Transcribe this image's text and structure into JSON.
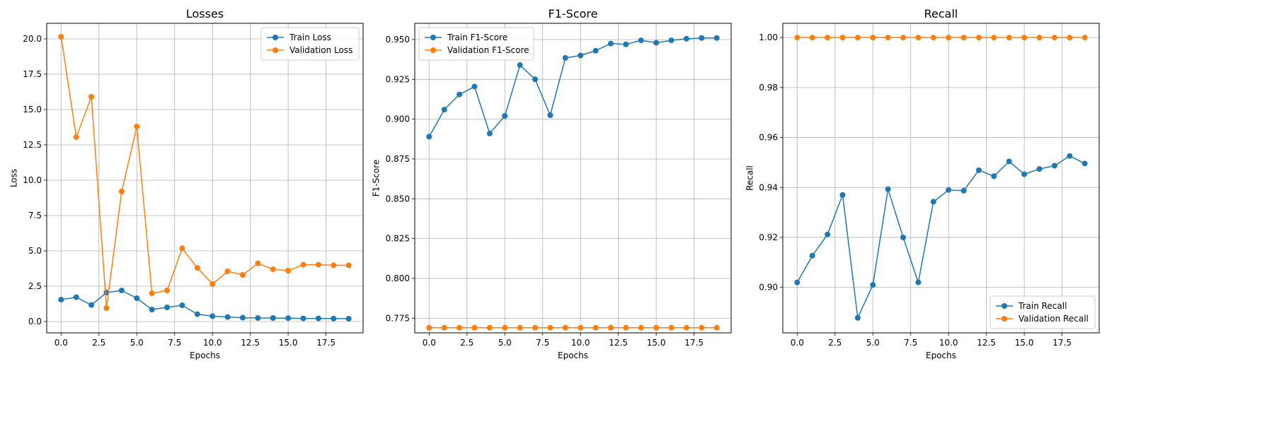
{
  "colors": {
    "train": "#1f77b4",
    "validation": "#ff7f0e"
  },
  "chart_data": [
    {
      "type": "line",
      "title": "Losses",
      "xlabel": "Epochs",
      "ylabel": "Loss",
      "x": [
        0,
        1,
        2,
        3,
        4,
        5,
        6,
        7,
        8,
        9,
        10,
        11,
        12,
        13,
        14,
        15,
        16,
        17,
        18,
        19
      ],
      "xlim": [
        -0.95,
        19.95
      ],
      "ylim": [
        -0.8,
        21.1
      ],
      "xticks": [
        "0.0",
        "2.5",
        "5.0",
        "7.5",
        "10.0",
        "12.5",
        "15.0",
        "17.5"
      ],
      "xtick_values": [
        0,
        2.5,
        5,
        7.5,
        10,
        12.5,
        15,
        17.5
      ],
      "yticks": [
        "0.0",
        "2.5",
        "5.0",
        "7.5",
        "10.0",
        "12.5",
        "15.0",
        "17.5",
        "20.0"
      ],
      "ytick_values": [
        0,
        2.5,
        5,
        7.5,
        10,
        12.5,
        15,
        17.5,
        20
      ],
      "grid": true,
      "legend_position": "top-right",
      "series": [
        {
          "name": "Train Loss",
          "color_key": "train",
          "values": [
            1.55,
            1.72,
            1.17,
            2.05,
            2.2,
            1.65,
            0.85,
            1.0,
            1.15,
            0.52,
            0.38,
            0.32,
            0.27,
            0.25,
            0.25,
            0.24,
            0.22,
            0.22,
            0.21,
            0.2
          ]
        },
        {
          "name": "Validation Loss",
          "color_key": "validation",
          "values": [
            20.15,
            13.05,
            15.9,
            0.95,
            9.2,
            13.8,
            2.0,
            2.2,
            5.18,
            3.8,
            2.65,
            3.55,
            3.3,
            4.12,
            3.7,
            3.6,
            4.02,
            4.02,
            3.98,
            3.98
          ]
        }
      ]
    },
    {
      "type": "line",
      "title": "F1-Score",
      "xlabel": "Epochs",
      "ylabel": "F1-Score",
      "x": [
        0,
        1,
        2,
        3,
        4,
        5,
        6,
        7,
        8,
        9,
        10,
        11,
        12,
        13,
        14,
        15,
        16,
        17,
        18,
        19
      ],
      "xlim": [
        -0.95,
        19.95
      ],
      "ylim": [
        0.7658,
        0.9602
      ],
      "xticks": [
        "0.0",
        "2.5",
        "5.0",
        "7.5",
        "10.0",
        "12.5",
        "15.0",
        "17.5"
      ],
      "xtick_values": [
        0,
        2.5,
        5,
        7.5,
        10,
        12.5,
        15,
        17.5
      ],
      "yticks": [
        "0.775",
        "0.800",
        "0.825",
        "0.850",
        "0.875",
        "0.900",
        "0.925",
        "0.950"
      ],
      "ytick_values": [
        0.775,
        0.8,
        0.825,
        0.85,
        0.875,
        0.9,
        0.925,
        0.95
      ],
      "grid": true,
      "legend_position": "top-left",
      "series": [
        {
          "name": "Train F1-Score",
          "color_key": "train",
          "values": [
            0.889,
            0.906,
            0.9155,
            0.9205,
            0.891,
            0.902,
            0.934,
            0.925,
            0.9025,
            0.9385,
            0.94,
            0.943,
            0.9475,
            0.947,
            0.9495,
            0.948,
            0.9495,
            0.9505,
            0.951,
            0.951
          ]
        },
        {
          "name": "Validation F1-Score",
          "color_key": "validation",
          "values": [
            0.769,
            0.769,
            0.769,
            0.769,
            0.769,
            0.769,
            0.769,
            0.769,
            0.769,
            0.769,
            0.769,
            0.769,
            0.769,
            0.769,
            0.769,
            0.769,
            0.769,
            0.769,
            0.769,
            0.769
          ]
        }
      ]
    },
    {
      "type": "line",
      "title": "Recall",
      "xlabel": "Epochs",
      "ylabel": "Recall",
      "x": [
        0,
        1,
        2,
        3,
        4,
        5,
        6,
        7,
        8,
        9,
        10,
        11,
        12,
        13,
        14,
        15,
        16,
        17,
        18,
        19
      ],
      "xlim": [
        -0.95,
        19.95
      ],
      "ylim": [
        0.8818,
        1.0057
      ],
      "xticks": [
        "0.0",
        "2.5",
        "5.0",
        "7.5",
        "10.0",
        "12.5",
        "15.0",
        "17.5"
      ],
      "xtick_values": [
        0,
        2.5,
        5,
        7.5,
        10,
        12.5,
        15,
        17.5
      ],
      "yticks": [
        "0.90",
        "0.92",
        "0.94",
        "0.96",
        "0.98",
        "1.00"
      ],
      "ytick_values": [
        0.9,
        0.92,
        0.94,
        0.96,
        0.98,
        1.0
      ],
      "grid": true,
      "legend_position": "bottom-right",
      "series": [
        {
          "name": "Train Recall",
          "color_key": "train",
          "values": [
            0.902,
            0.9127,
            0.9212,
            0.937,
            0.8878,
            0.901,
            0.9393,
            0.92,
            0.902,
            0.9343,
            0.939,
            0.9387,
            0.9469,
            0.9445,
            0.9504,
            0.9453,
            0.9474,
            0.9487,
            0.9526,
            0.9496
          ]
        },
        {
          "name": "Validation Recall",
          "color_key": "validation",
          "values": [
            1.0,
            1.0,
            1.0,
            1.0,
            1.0,
            1.0,
            1.0,
            1.0,
            1.0,
            1.0,
            1.0,
            1.0,
            1.0,
            1.0,
            1.0,
            1.0,
            1.0,
            1.0,
            1.0,
            1.0
          ]
        }
      ]
    }
  ]
}
